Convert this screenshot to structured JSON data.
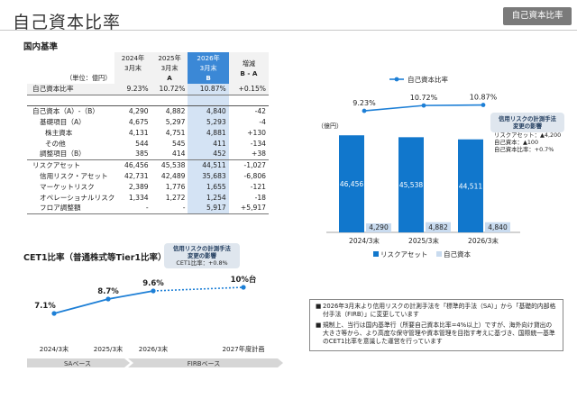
{
  "page": {
    "title": "自己資本比率",
    "badge": "自己資本比率",
    "domestic_title": "国内基準",
    "cet_title": "CET1比率（普通株式等Tier1比率）"
  },
  "table": {
    "unit": "（単位：億円）",
    "col_2024": [
      "2024年",
      "3月末"
    ],
    "col_2025": [
      "2025年",
      "3月末",
      "A"
    ],
    "col_2026": [
      "2026年",
      "3月末",
      "B"
    ],
    "col_diff": [
      "増減",
      "B - A"
    ],
    "rows": [
      {
        "label": "自己資本比率",
        "v1": "9.23%",
        "v2": "10.72%",
        "v3": "10.87%",
        "d": "+0.15%"
      },
      {
        "label": "自己資本（A）-（B）",
        "v1": "4,290",
        "v2": "4,882",
        "v3": "4,840",
        "d": "-42"
      },
      {
        "label": "基礎項目（A）",
        "v1": "4,675",
        "v2": "5,297",
        "v3": "5,293",
        "d": "-4"
      },
      {
        "label": "株主資本",
        "v1": "4,131",
        "v2": "4,751",
        "v3": "4,881",
        "d": "+130"
      },
      {
        "label": "その他",
        "v1": "544",
        "v2": "545",
        "v3": "411",
        "d": "-134"
      },
      {
        "label": "調整項目（B）",
        "v1": "385",
        "v2": "414",
        "v3": "452",
        "d": "+38"
      },
      {
        "label": "リスクアセット",
        "v1": "46,456",
        "v2": "45,538",
        "v3": "44,511",
        "d": "-1,027"
      },
      {
        "label": "信用リスク・アセット",
        "v1": "42,731",
        "v2": "42,489",
        "v3": "35,683",
        "d": "-6,806"
      },
      {
        "label": "マーケットリスク",
        "v1": "2,389",
        "v2": "1,776",
        "v3": "1,655",
        "d": "-121"
      },
      {
        "label": "オペレーショナルリスク",
        "v1": "1,334",
        "v2": "1,272",
        "v3": "1,254",
        "d": "-18"
      },
      {
        "label": "フロア調整額",
        "v1": "-",
        "v2": "-",
        "v3": "5,917",
        "d": "+5,917"
      }
    ]
  },
  "bar_annot": {
    "title": [
      "信用リスクの計測手法",
      "変更の影響"
    ],
    "lines": [
      "リスクアセット：▲4,200",
      "自己資本：▲100",
      "自己資本比率：+0.7%"
    ]
  },
  "cet_annot": {
    "title": [
      "信用リスクの計測手法",
      "変更の影響"
    ],
    "line": "CET1比率：+0.8%"
  },
  "notes": [
    "2026年3月末より信用リスクの計測手法を「標準的手法（SA）」から「基礎的内部格付手法（FIRB）」に変更しています",
    "規制上、当行は国内基準行（所要自己資本比率=4%以上）ですが、海外向け貸出の大きさ等から、より高度な保守管理や資本管理を目指す考えに基づき、国際統一基準のCET1比率を意識した運営を行っています"
  ],
  "chart_data": [
    {
      "type": "bar",
      "unit_label": "（億円）",
      "categories": [
        "2024/3末",
        "2025/3末",
        "2026/3末"
      ],
      "series": [
        {
          "name": "リスクアセット",
          "values": [
            46456,
            45538,
            44511
          ],
          "color": "#1177cc"
        },
        {
          "name": "自己資本",
          "values": [
            4290,
            4882,
            4840
          ],
          "color": "#c9dbef"
        }
      ],
      "line_series": {
        "name": "自己資本比率",
        "values": [
          9.23,
          10.72,
          10.87
        ],
        "labels": [
          "9.23%",
          "10.72%",
          "10.87%"
        ],
        "color": "#1d7fd6"
      },
      "legend": "bottom"
    },
    {
      "type": "line",
      "categories": [
        "2024/3末",
        "2025/3末",
        "2026/3末",
        "2027年度計画"
      ],
      "values": [
        7.1,
        8.7,
        9.6,
        10
      ],
      "labels": [
        "7.1%",
        "8.7%",
        "9.6%",
        "10%台"
      ],
      "segment_labels": [
        "SAベース",
        "FIRBベース"
      ],
      "color": "#1d7fd6"
    }
  ]
}
